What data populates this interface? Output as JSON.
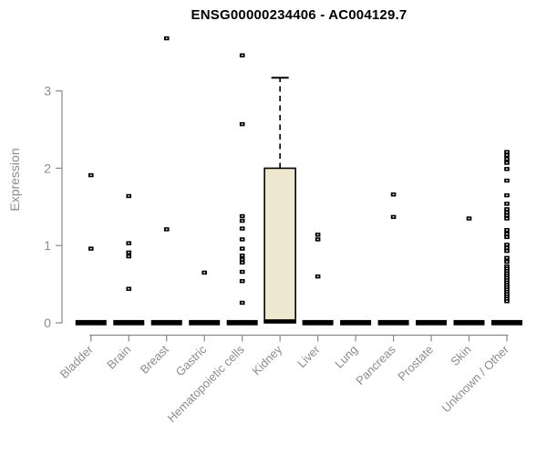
{
  "chart_data": {
    "type": "boxplot",
    "title": "ENSG00000234406 - AC004129.7",
    "ylabel": "Expression",
    "xlabel": "",
    "ylim": [
      0,
      3.7
    ],
    "yticks": [
      0,
      1,
      2,
      3
    ],
    "grid": false,
    "legend": null,
    "categories": [
      "Bladder",
      "Brain",
      "Breast",
      "Gastric",
      "Hematopoietic cells",
      "Kidney",
      "Liver",
      "Lung",
      "Pancreas",
      "Prostate",
      "Skin",
      "Unknown / Other"
    ],
    "boxes": [
      {
        "category": "Bladder",
        "q1": 0,
        "median": 0,
        "q3": 0,
        "whisker_low": 0,
        "whisker_high": 0,
        "outliers": [
          1.91,
          0.96
        ]
      },
      {
        "category": "Brain",
        "q1": 0,
        "median": 0,
        "q3": 0,
        "whisker_low": 0,
        "whisker_high": 0,
        "outliers": [
          1.64,
          1.03,
          0.91,
          0.86,
          0.44
        ]
      },
      {
        "category": "Breast",
        "q1": 0,
        "median": 0,
        "q3": 0,
        "whisker_low": 0,
        "whisker_high": 0,
        "outliers": [
          3.68,
          1.21
        ]
      },
      {
        "category": "Gastric",
        "q1": 0,
        "median": 0,
        "q3": 0,
        "whisker_low": 0,
        "whisker_high": 0,
        "outliers": [
          0.65
        ]
      },
      {
        "category": "Hematopoietic cells",
        "q1": 0,
        "median": 0,
        "q3": 0,
        "whisker_low": 0,
        "whisker_high": 0,
        "outliers": [
          3.46,
          2.57,
          1.38,
          1.32,
          1.22,
          1.08,
          0.96,
          0.87,
          0.82,
          0.78,
          0.66,
          0.54,
          0.26
        ]
      },
      {
        "category": "Kidney",
        "q1": 0,
        "median": 0,
        "q3": 2.0,
        "whisker_low": 0,
        "whisker_high": 3.17,
        "outliers": []
      },
      {
        "category": "Liver",
        "q1": 0,
        "median": 0,
        "q3": 0,
        "whisker_low": 0,
        "whisker_high": 0,
        "outliers": [
          1.14,
          1.08,
          0.6
        ]
      },
      {
        "category": "Lung",
        "q1": 0,
        "median": 0,
        "q3": 0,
        "whisker_low": 0,
        "whisker_high": 0,
        "outliers": []
      },
      {
        "category": "Pancreas",
        "q1": 0,
        "median": 0,
        "q3": 0,
        "whisker_low": 0,
        "whisker_high": 0,
        "outliers": [
          1.66,
          1.37
        ]
      },
      {
        "category": "Prostate",
        "q1": 0,
        "median": 0,
        "q3": 0,
        "whisker_low": 0,
        "whisker_high": 0,
        "outliers": []
      },
      {
        "category": "Skin",
        "q1": 0,
        "median": 0,
        "q3": 0,
        "whisker_low": 0,
        "whisker_high": 0,
        "outliers": [
          1.35
        ]
      },
      {
        "category": "Unknown / Other",
        "q1": 0,
        "median": 0,
        "q3": 0,
        "whisker_low": 0,
        "whisker_high": 0,
        "outliers": [
          2.21,
          2.17,
          2.12,
          2.07,
          1.99,
          1.84,
          1.65,
          1.54,
          1.47,
          1.43,
          1.39,
          1.35,
          1.2,
          1.15,
          1.11,
          1.01,
          0.97,
          0.93,
          0.84,
          0.79,
          0.73,
          0.7,
          0.67,
          0.64,
          0.61,
          0.58,
          0.55,
          0.52,
          0.49,
          0.46,
          0.43,
          0.4,
          0.37,
          0.34,
          0.31,
          0.28
        ]
      }
    ],
    "colors": {
      "box_fill": "#EDE8CF",
      "box_border": "#000000",
      "point": "#000000",
      "axis_line": "#898989",
      "tick_label": "#8C8C8C",
      "title": "#000000",
      "background": "#FFFFFF"
    }
  }
}
